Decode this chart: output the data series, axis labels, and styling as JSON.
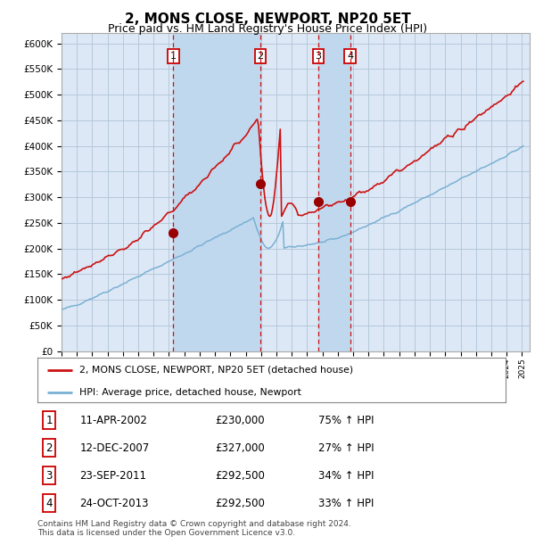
{
  "title": "2, MONS CLOSE, NEWPORT, NP20 5ET",
  "subtitle": "Price paid vs. HM Land Registry's House Price Index (HPI)",
  "title_fontsize": 11,
  "subtitle_fontsize": 9,
  "ylim": [
    0,
    620000
  ],
  "yticks": [
    0,
    50000,
    100000,
    150000,
    200000,
    250000,
    300000,
    350000,
    400000,
    450000,
    500000,
    550000,
    600000
  ],
  "ytick_labels": [
    "£0",
    "£50K",
    "£100K",
    "£150K",
    "£200K",
    "£250K",
    "£300K",
    "£350K",
    "£400K",
    "£450K",
    "£500K",
    "£550K",
    "£600K"
  ],
  "background_color": "#ffffff",
  "plot_bg_color": "#dce8f5",
  "grid_color": "#b0c4d8",
  "hpi_line_color": "#7ab0d4",
  "price_line_color": "#cc1111",
  "sale_marker_color": "#990000",
  "dashed_line_color": "#cc1111",
  "shade_color": "#c0d8ee",
  "legend_label_price": "2, MONS CLOSE, NEWPORT, NP20 5ET (detached house)",
  "legend_label_hpi": "HPI: Average price, detached house, Newport",
  "sale_dates": [
    "2002-04-11",
    "2007-12-12",
    "2011-09-23",
    "2013-10-24"
  ],
  "sale_prices": [
    230000,
    327000,
    292500,
    292500
  ],
  "sale_labels": [
    "1",
    "2",
    "3",
    "4"
  ],
  "footer_text": "Contains HM Land Registry data © Crown copyright and database right 2024.\nThis data is licensed under the Open Government Licence v3.0.",
  "table_rows": [
    {
      "num": "1",
      "date": "11-APR-2002",
      "price": "£230,000",
      "hpi": "75% ↑ HPI"
    },
    {
      "num": "2",
      "date": "12-DEC-2007",
      "price": "£327,000",
      "hpi": "27% ↑ HPI"
    },
    {
      "num": "3",
      "date": "23-SEP-2011",
      "price": "£292,500",
      "hpi": "34% ↑ HPI"
    },
    {
      "num": "4",
      "date": "24-OCT-2013",
      "price": "£292,500",
      "hpi": "33% ↑ HPI"
    }
  ]
}
